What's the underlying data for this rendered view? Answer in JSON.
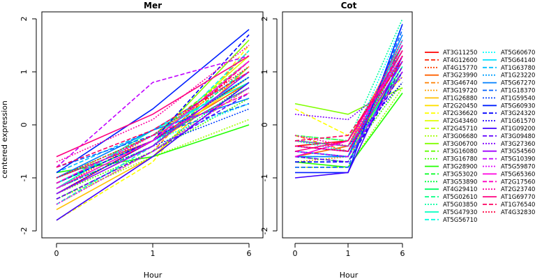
{
  "chart_data": {
    "type": "line",
    "ylabel": "centered expression",
    "xlabel": "Hour",
    "x": [
      "0",
      "1",
      "6"
    ],
    "ylim": [
      -2,
      2
    ],
    "yticks": [
      -2,
      -1,
      0,
      1,
      2
    ],
    "grid": false,
    "legend_position": "right",
    "panels": [
      {
        "title": "Mer",
        "series": [
          {
            "name": "AT3G11250",
            "values": [
              -1.3,
              -0.3,
              0.9
            ]
          },
          {
            "name": "AT4G12600",
            "values": [
              -1.5,
              -0.4,
              1.2
            ]
          },
          {
            "name": "AT4G15770",
            "values": [
              -1.2,
              -0.2,
              1.0
            ]
          },
          {
            "name": "AT3G23990",
            "values": [
              -1.0,
              -0.3,
              0.8
            ]
          },
          {
            "name": "AT3G46740",
            "values": [
              -1.4,
              -0.5,
              1.4
            ]
          },
          {
            "name": "AT3G19720",
            "values": [
              -1.1,
              -0.2,
              0.6
            ]
          },
          {
            "name": "AT1G26880",
            "values": [
              -1.6,
              -0.6,
              1.1
            ]
          },
          {
            "name": "AT2G20450",
            "values": [
              -1.3,
              -0.4,
              0.9
            ]
          },
          {
            "name": "AT2G36620",
            "values": [
              -1.8,
              -0.7,
              1.5
            ]
          },
          {
            "name": "AT2G43460",
            "values": [
              -1.2,
              -0.3,
              1.3
            ]
          },
          {
            "name": "AT2G45710",
            "values": [
              -1.5,
              -0.5,
              0.7
            ]
          },
          {
            "name": "AT3G06680",
            "values": [
              -1.4,
              -0.6,
              0.1
            ]
          },
          {
            "name": "AT3G06700",
            "values": [
              -1.1,
              -0.3,
              1.6
            ]
          },
          {
            "name": "AT3G16080",
            "values": [
              -1.0,
              -0.2,
              1.2
            ]
          },
          {
            "name": "AT3G16780",
            "values": [
              -1.3,
              -0.5,
              0.5
            ]
          },
          {
            "name": "AT3G28900",
            "values": [
              -0.9,
              -0.6,
              0.0
            ]
          },
          {
            "name": "AT3G53020",
            "values": [
              -1.2,
              -0.4,
              1.0
            ]
          },
          {
            "name": "AT3G53890",
            "values": [
              -1.4,
              -0.5,
              0.8
            ]
          },
          {
            "name": "AT4G29410",
            "values": [
              -1.1,
              -0.3,
              0.7
            ]
          },
          {
            "name": "AT5G02610",
            "values": [
              -1.3,
              -0.4,
              1.1
            ]
          },
          {
            "name": "AT5G03850",
            "values": [
              -1.0,
              -0.2,
              0.9
            ]
          },
          {
            "name": "AT5G47930",
            "values": [
              -1.2,
              -0.1,
              0.8
            ]
          },
          {
            "name": "AT5G56710",
            "values": [
              -1.5,
              -0.4,
              1.4
            ]
          },
          {
            "name": "AT5G60670",
            "values": [
              -1.3,
              -0.3,
              0.4
            ]
          },
          {
            "name": "AT5G64140",
            "values": [
              -1.1,
              -0.2,
              0.9
            ]
          },
          {
            "name": "AT1G63780",
            "values": [
              -0.9,
              -0.1,
              1.0
            ]
          },
          {
            "name": "AT1G23220",
            "values": [
              -1.2,
              -0.3,
              1.2
            ]
          },
          {
            "name": "AT5G67270",
            "values": [
              -1.0,
              -0.1,
              0.5
            ]
          },
          {
            "name": "AT1G18370",
            "values": [
              -0.8,
              -0.2,
              0.4
            ]
          },
          {
            "name": "AT1G59540",
            "values": [
              -1.2,
              -0.4,
              0.3
            ]
          },
          {
            "name": "AT5G60930",
            "values": [
              -0.9,
              0.3,
              1.8
            ]
          },
          {
            "name": "AT3G24320",
            "values": [
              -1.1,
              -0.3,
              1.7
            ]
          },
          {
            "name": "AT1G61570",
            "values": [
              -1.3,
              -0.3,
              0.9
            ]
          },
          {
            "name": "AT1G09200",
            "values": [
              -1.8,
              -0.6,
              0.8
            ]
          },
          {
            "name": "AT3G09480",
            "values": [
              -1.4,
              -0.5,
              0.6
            ]
          },
          {
            "name": "AT3G27360",
            "values": [
              -1.0,
              -0.3,
              0.7
            ]
          },
          {
            "name": "AT3G54560",
            "values": [
              -1.3,
              -0.4,
              1.0
            ]
          },
          {
            "name": "AT5G10390",
            "values": [
              -0.8,
              0.8,
              1.3
            ]
          },
          {
            "name": "AT5G59870",
            "values": [
              -1.5,
              -0.5,
              0.7
            ]
          },
          {
            "name": "AT5G65360",
            "values": [
              -1.2,
              -0.3,
              1.2
            ]
          },
          {
            "name": "AT2G17560",
            "values": [
              -1.1,
              -0.2,
              0.6
            ]
          },
          {
            "name": "AT2G23740",
            "values": [
              -0.7,
              0.1,
              1.5
            ]
          },
          {
            "name": "AT1G69770",
            "values": [
              -0.6,
              0.2,
              1.3
            ]
          },
          {
            "name": "AT1G76540",
            "values": [
              -0.8,
              -0.1,
              1.0
            ]
          },
          {
            "name": "AT4G32830",
            "values": [
              -1.0,
              -0.2,
              1.1
            ]
          }
        ]
      },
      {
        "title": "Cot",
        "series": [
          {
            "name": "AT3G11250",
            "values": [
              -0.4,
              -0.3,
              1.5
            ]
          },
          {
            "name": "AT4G12600",
            "values": [
              -0.5,
              -0.6,
              1.2
            ]
          },
          {
            "name": "AT4G15770",
            "values": [
              -0.3,
              -0.5,
              1.0
            ]
          },
          {
            "name": "AT3G23990",
            "values": [
              -0.6,
              -0.4,
              1.3
            ]
          },
          {
            "name": "AT3G46740",
            "values": [
              -0.2,
              -0.5,
              1.4
            ]
          },
          {
            "name": "AT3G19720",
            "values": [
              -0.7,
              -0.6,
              1.1
            ]
          },
          {
            "name": "AT1G26880",
            "values": [
              -0.3,
              -0.4,
              1.6
            ]
          },
          {
            "name": "AT2G20450",
            "values": [
              -0.5,
              -0.6,
              1.2
            ]
          },
          {
            "name": "AT2G36620",
            "values": [
              0.3,
              -0.2,
              0.9
            ]
          },
          {
            "name": "AT2G43460",
            "values": [
              -0.4,
              -0.5,
              1.3
            ]
          },
          {
            "name": "AT2G45710",
            "values": [
              -0.6,
              -0.7,
              1.0
            ]
          },
          {
            "name": "AT3G06680",
            "values": [
              -0.8,
              -0.8,
              0.7
            ]
          },
          {
            "name": "AT3G06700",
            "values": [
              0.4,
              0.2,
              0.7
            ]
          },
          {
            "name": "AT3G16080",
            "values": [
              -0.2,
              -0.3,
              1.4
            ]
          },
          {
            "name": "AT3G16780",
            "values": [
              -0.5,
              -0.6,
              0.8
            ]
          },
          {
            "name": "AT3G28900",
            "values": [
              -0.7,
              -0.8,
              0.6
            ]
          },
          {
            "name": "AT3G53020",
            "values": [
              -0.4,
              -0.5,
              1.1
            ]
          },
          {
            "name": "AT3G53890",
            "values": [
              -0.6,
              -0.7,
              1.2
            ]
          },
          {
            "name": "AT4G29410",
            "values": [
              -0.3,
              -0.4,
              1.0
            ]
          },
          {
            "name": "AT5G02610",
            "values": [
              -0.5,
              -0.6,
              1.5
            ]
          },
          {
            "name": "AT5G03850",
            "values": [
              -0.2,
              -0.3,
              2.0
            ]
          },
          {
            "name": "AT5G47930",
            "values": [
              -0.4,
              -0.5,
              1.3
            ]
          },
          {
            "name": "AT5G56710",
            "values": [
              -0.6,
              -0.6,
              1.1
            ]
          },
          {
            "name": "AT5G60670",
            "values": [
              -0.3,
              -0.5,
              1.9
            ]
          },
          {
            "name": "AT5G64140",
            "values": [
              -0.5,
              -0.6,
              1.6
            ]
          },
          {
            "name": "AT1G63780",
            "values": [
              -0.7,
              -0.7,
              1.2
            ]
          },
          {
            "name": "AT1G23220",
            "values": [
              -0.4,
              -0.5,
              1.4
            ]
          },
          {
            "name": "AT5G67270",
            "values": [
              -0.6,
              -0.6,
              1.7
            ]
          },
          {
            "name": "AT1G18370",
            "values": [
              -0.8,
              -0.8,
              1.8
            ]
          },
          {
            "name": "AT1G59540",
            "values": [
              -0.5,
              -0.6,
              1.5
            ]
          },
          {
            "name": "AT5G60930",
            "values": [
              -0.9,
              -0.9,
              1.9
            ]
          },
          {
            "name": "AT3G24320",
            "values": [
              -0.7,
              -0.7,
              1.0
            ]
          },
          {
            "name": "AT1G61570",
            "values": [
              -0.3,
              -0.4,
              0.8
            ]
          },
          {
            "name": "AT1G09200",
            "values": [
              -1.0,
              -0.9,
              1.3
            ]
          },
          {
            "name": "AT3G09480",
            "values": [
              -0.6,
              -0.7,
              1.1
            ]
          },
          {
            "name": "AT3G27360",
            "values": [
              0.2,
              0.1,
              0.9
            ]
          },
          {
            "name": "AT3G54560",
            "values": [
              -0.4,
              -0.5,
              1.2
            ]
          },
          {
            "name": "AT5G10390",
            "values": [
              -0.5,
              -0.6,
              1.0
            ]
          },
          {
            "name": "AT5G59870",
            "values": [
              -0.3,
              -0.4,
              1.4
            ]
          },
          {
            "name": "AT5G65360",
            "values": [
              -0.6,
              -0.3,
              1.3
            ]
          },
          {
            "name": "AT2G17560",
            "values": [
              -0.4,
              -0.5,
              1.5
            ]
          },
          {
            "name": "AT2G23740",
            "values": [
              -0.2,
              -0.4,
              1.6
            ]
          },
          {
            "name": "AT1G69770",
            "values": [
              -0.5,
              -0.3,
              1.4
            ]
          },
          {
            "name": "AT1G76540",
            "values": [
              -0.3,
              -0.2,
              1.2
            ]
          },
          {
            "name": "AT4G32830",
            "values": [
              -0.4,
              -0.5,
              1.3
            ]
          }
        ]
      }
    ],
    "legend": [
      {
        "name": "AT3G11250",
        "color": "#ff0000",
        "dash": "solid"
      },
      {
        "name": "AT4G12600",
        "color": "#ff2000",
        "dash": "dashed"
      },
      {
        "name": "AT4G15770",
        "color": "#ff4000",
        "dash": "dotted"
      },
      {
        "name": "AT3G23990",
        "color": "#ff6000",
        "dash": "solid"
      },
      {
        "name": "AT3G46740",
        "color": "#ff8000",
        "dash": "dashed"
      },
      {
        "name": "AT3G19720",
        "color": "#ffa000",
        "dash": "dotted"
      },
      {
        "name": "AT1G26880",
        "color": "#ffc000",
        "dash": "solid"
      },
      {
        "name": "AT2G20450",
        "color": "#ffe000",
        "dash": "solid"
      },
      {
        "name": "AT2G36620",
        "color": "#ffff00",
        "dash": "dashed"
      },
      {
        "name": "AT2G43460",
        "color": "#e0ff00",
        "dash": "solid"
      },
      {
        "name": "AT2G45710",
        "color": "#c0ff00",
        "dash": "dashed"
      },
      {
        "name": "AT3G06680",
        "color": "#a0ff00",
        "dash": "dotted"
      },
      {
        "name": "AT3G06700",
        "color": "#80ff00",
        "dash": "solid"
      },
      {
        "name": "AT3G16080",
        "color": "#60ff00",
        "dash": "dashed"
      },
      {
        "name": "AT3G16780",
        "color": "#40ff00",
        "dash": "dotted"
      },
      {
        "name": "AT3G28900",
        "color": "#20ff00",
        "dash": "solid"
      },
      {
        "name": "AT3G53020",
        "color": "#00ff20",
        "dash": "dashed"
      },
      {
        "name": "AT3G53890",
        "color": "#00ff40",
        "dash": "dotted"
      },
      {
        "name": "AT4G29410",
        "color": "#00ff60",
        "dash": "solid"
      },
      {
        "name": "AT5G02610",
        "color": "#00ff80",
        "dash": "dashed"
      },
      {
        "name": "AT5G03850",
        "color": "#00ffa0",
        "dash": "dotted"
      },
      {
        "name": "AT5G47930",
        "color": "#00ffc0",
        "dash": "solid"
      },
      {
        "name": "AT5G56710",
        "color": "#00ffe0",
        "dash": "dashed"
      },
      {
        "name": "AT5G60670",
        "color": "#00ffff",
        "dash": "dotted"
      },
      {
        "name": "AT5G64140",
        "color": "#00e0ff",
        "dash": "solid"
      },
      {
        "name": "AT1G63780",
        "color": "#00c0ff",
        "dash": "dashed"
      },
      {
        "name": "AT1G23220",
        "color": "#00a0ff",
        "dash": "dotted"
      },
      {
        "name": "AT5G67270",
        "color": "#0080ff",
        "dash": "solid"
      },
      {
        "name": "AT1G18370",
        "color": "#0060ff",
        "dash": "dashed"
      },
      {
        "name": "AT1G59540",
        "color": "#0040ff",
        "dash": "dotted"
      },
      {
        "name": "AT5G60930",
        "color": "#0020ff",
        "dash": "solid"
      },
      {
        "name": "AT3G24320",
        "color": "#0000ff",
        "dash": "dashed"
      },
      {
        "name": "AT1G61570",
        "color": "#2000ff",
        "dash": "dotted"
      },
      {
        "name": "AT1G09200",
        "color": "#4000ff",
        "dash": "solid"
      },
      {
        "name": "AT3G09480",
        "color": "#6000ff",
        "dash": "dashed"
      },
      {
        "name": "AT3G27360",
        "color": "#8000ff",
        "dash": "dotted"
      },
      {
        "name": "AT3G54560",
        "color": "#a000ff",
        "dash": "solid"
      },
      {
        "name": "AT5G10390",
        "color": "#c000ff",
        "dash": "dashed"
      },
      {
        "name": "AT5G59870",
        "color": "#e000ff",
        "dash": "dotted"
      },
      {
        "name": "AT5G65360",
        "color": "#ff00e0",
        "dash": "solid"
      },
      {
        "name": "AT2G17560",
        "color": "#ff00c0",
        "dash": "dashed"
      },
      {
        "name": "AT2G23740",
        "color": "#ff00a0",
        "dash": "dotted"
      },
      {
        "name": "AT1G69770",
        "color": "#ff0080",
        "dash": "solid"
      },
      {
        "name": "AT1G76540",
        "color": "#ff0060",
        "dash": "dashed"
      },
      {
        "name": "AT4G32830",
        "color": "#ff0040",
        "dash": "dotted"
      }
    ]
  }
}
